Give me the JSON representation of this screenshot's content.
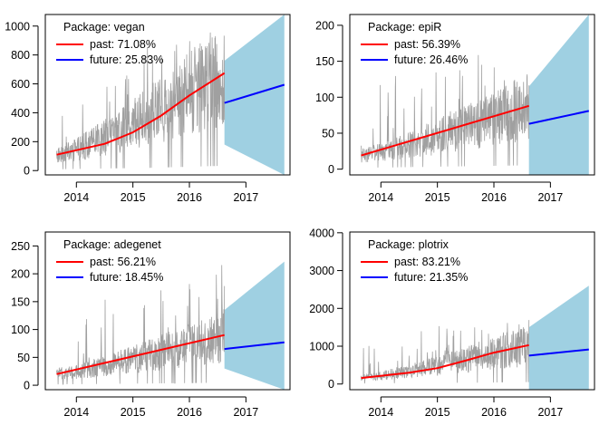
{
  "chart_data": [
    {
      "type": "line",
      "legend_title": "Package: vegan",
      "legend_placement": "top-left",
      "x_ticks": [
        "2014",
        "2015",
        "2016",
        "2017"
      ],
      "y_ticks": [
        "0",
        "200",
        "400",
        "600",
        "800",
        "1000"
      ],
      "xlim": [
        2013.45,
        2017.78
      ],
      "ylim": [
        -30,
        1080
      ],
      "past": {
        "x0": 2013.65,
        "x1": 2016.62,
        "noise_base": [
          60,
          800
        ],
        "y_start": 110,
        "y_end": 675
      },
      "future": {
        "x0": 2016.62,
        "x1": 2017.68,
        "y_start": 468,
        "y_end": 594,
        "band_start": [
          180,
          760
        ],
        "band_end": [
          -30,
          1080
        ]
      },
      "series": [
        {
          "name": "past: 71.08%",
          "color": "#ff0000",
          "x": [
            2013.65,
            2014.5,
            2015.0,
            2015.5,
            2016.0,
            2016.62
          ],
          "values": [
            110,
            185,
            265,
            380,
            520,
            675
          ]
        },
        {
          "name": "future: 25.83%",
          "color": "#0000ff",
          "x": [
            2016.62,
            2017.68
          ],
          "values": [
            468,
            594
          ]
        }
      ],
      "grid": false
    },
    {
      "type": "line",
      "legend_title": "Package: epiR",
      "legend_placement": "top-left",
      "x_ticks": [
        "2014",
        "2015",
        "2016",
        "2017"
      ],
      "y_ticks": [
        "0",
        "50",
        "100",
        "150",
        "200"
      ],
      "xlim": [
        2013.45,
        2017.78
      ],
      "ylim": [
        -8,
        215
      ],
      "past": {
        "x0": 2013.65,
        "x1": 2016.62,
        "noise_base": [
          12,
          155
        ],
        "y_start": 19,
        "y_end": 88
      },
      "future": {
        "x0": 2016.62,
        "x1": 2017.68,
        "y_start": 63,
        "y_end": 81,
        "band_start": [
          -8,
          115
        ],
        "band_end": [
          -8,
          215
        ]
      },
      "series": [
        {
          "name": "past: 56.39%",
          "color": "#ff0000",
          "x": [
            2013.65,
            2016.62
          ],
          "values": [
            19,
            88
          ]
        },
        {
          "name": "future: 26.46%",
          "color": "#0000ff",
          "x": [
            2016.62,
            2017.68
          ],
          "values": [
            63,
            81
          ]
        }
      ],
      "grid": false
    },
    {
      "type": "line",
      "legend_title": "Package: adegenet",
      "legend_placement": "top-left",
      "x_ticks": [
        "2014",
        "2015",
        "2016",
        "2017"
      ],
      "y_ticks": [
        "0",
        "50",
        "100",
        "150",
        "200",
        "250"
      ],
      "xlim": [
        2013.45,
        2017.78
      ],
      "ylim": [
        -8,
        275
      ],
      "past": {
        "x0": 2013.65,
        "x1": 2016.62,
        "noise_base": [
          10,
          180
        ],
        "y_start": 20,
        "y_end": 90
      },
      "future": {
        "x0": 2016.62,
        "x1": 2017.68,
        "y_start": 65,
        "y_end": 77,
        "band_start": [
          30,
          135
        ],
        "band_end": [
          -8,
          222
        ]
      },
      "series": [
        {
          "name": "past: 56.21%",
          "color": "#ff0000",
          "x": [
            2013.65,
            2016.62
          ],
          "values": [
            20,
            90
          ]
        },
        {
          "name": "future: 18.45%",
          "color": "#0000ff",
          "x": [
            2016.62,
            2017.68
          ],
          "values": [
            65,
            77
          ]
        }
      ],
      "grid": false
    },
    {
      "type": "line",
      "legend_title": "Package: plotrix",
      "legend_placement": "top-left",
      "x_ticks": [
        "2014",
        "2015",
        "2016",
        "2017"
      ],
      "y_ticks": [
        "0",
        "1000",
        "2000",
        "3000",
        "4000"
      ],
      "xlim": [
        2013.45,
        2017.78
      ],
      "ylim": [
        -150,
        4020
      ],
      "past": {
        "x0": 2013.65,
        "x1": 2016.62,
        "noise_base": [
          100,
          1500
        ],
        "y_start": 160,
        "y_end": 1030
      },
      "future": {
        "x0": 2016.62,
        "x1": 2017.68,
        "y_start": 750,
        "y_end": 915,
        "band_start": [
          -150,
          1500
        ],
        "band_end": [
          -150,
          2600
        ]
      },
      "series": [
        {
          "name": "past: 83.21%",
          "color": "#ff0000",
          "x": [
            2013.65,
            2014.5,
            2015.0,
            2015.5,
            2016.0,
            2016.62
          ],
          "values": [
            160,
            300,
            420,
            620,
            830,
            1030
          ]
        },
        {
          "name": "future: 21.35%",
          "color": "#0000ff",
          "x": [
            2016.62,
            2017.68
          ],
          "values": [
            750,
            915
          ]
        }
      ],
      "grid": false
    }
  ],
  "colors": {
    "raw_series": "#a0a0a0",
    "band": "#9fd0e2",
    "axis": "#000000"
  }
}
